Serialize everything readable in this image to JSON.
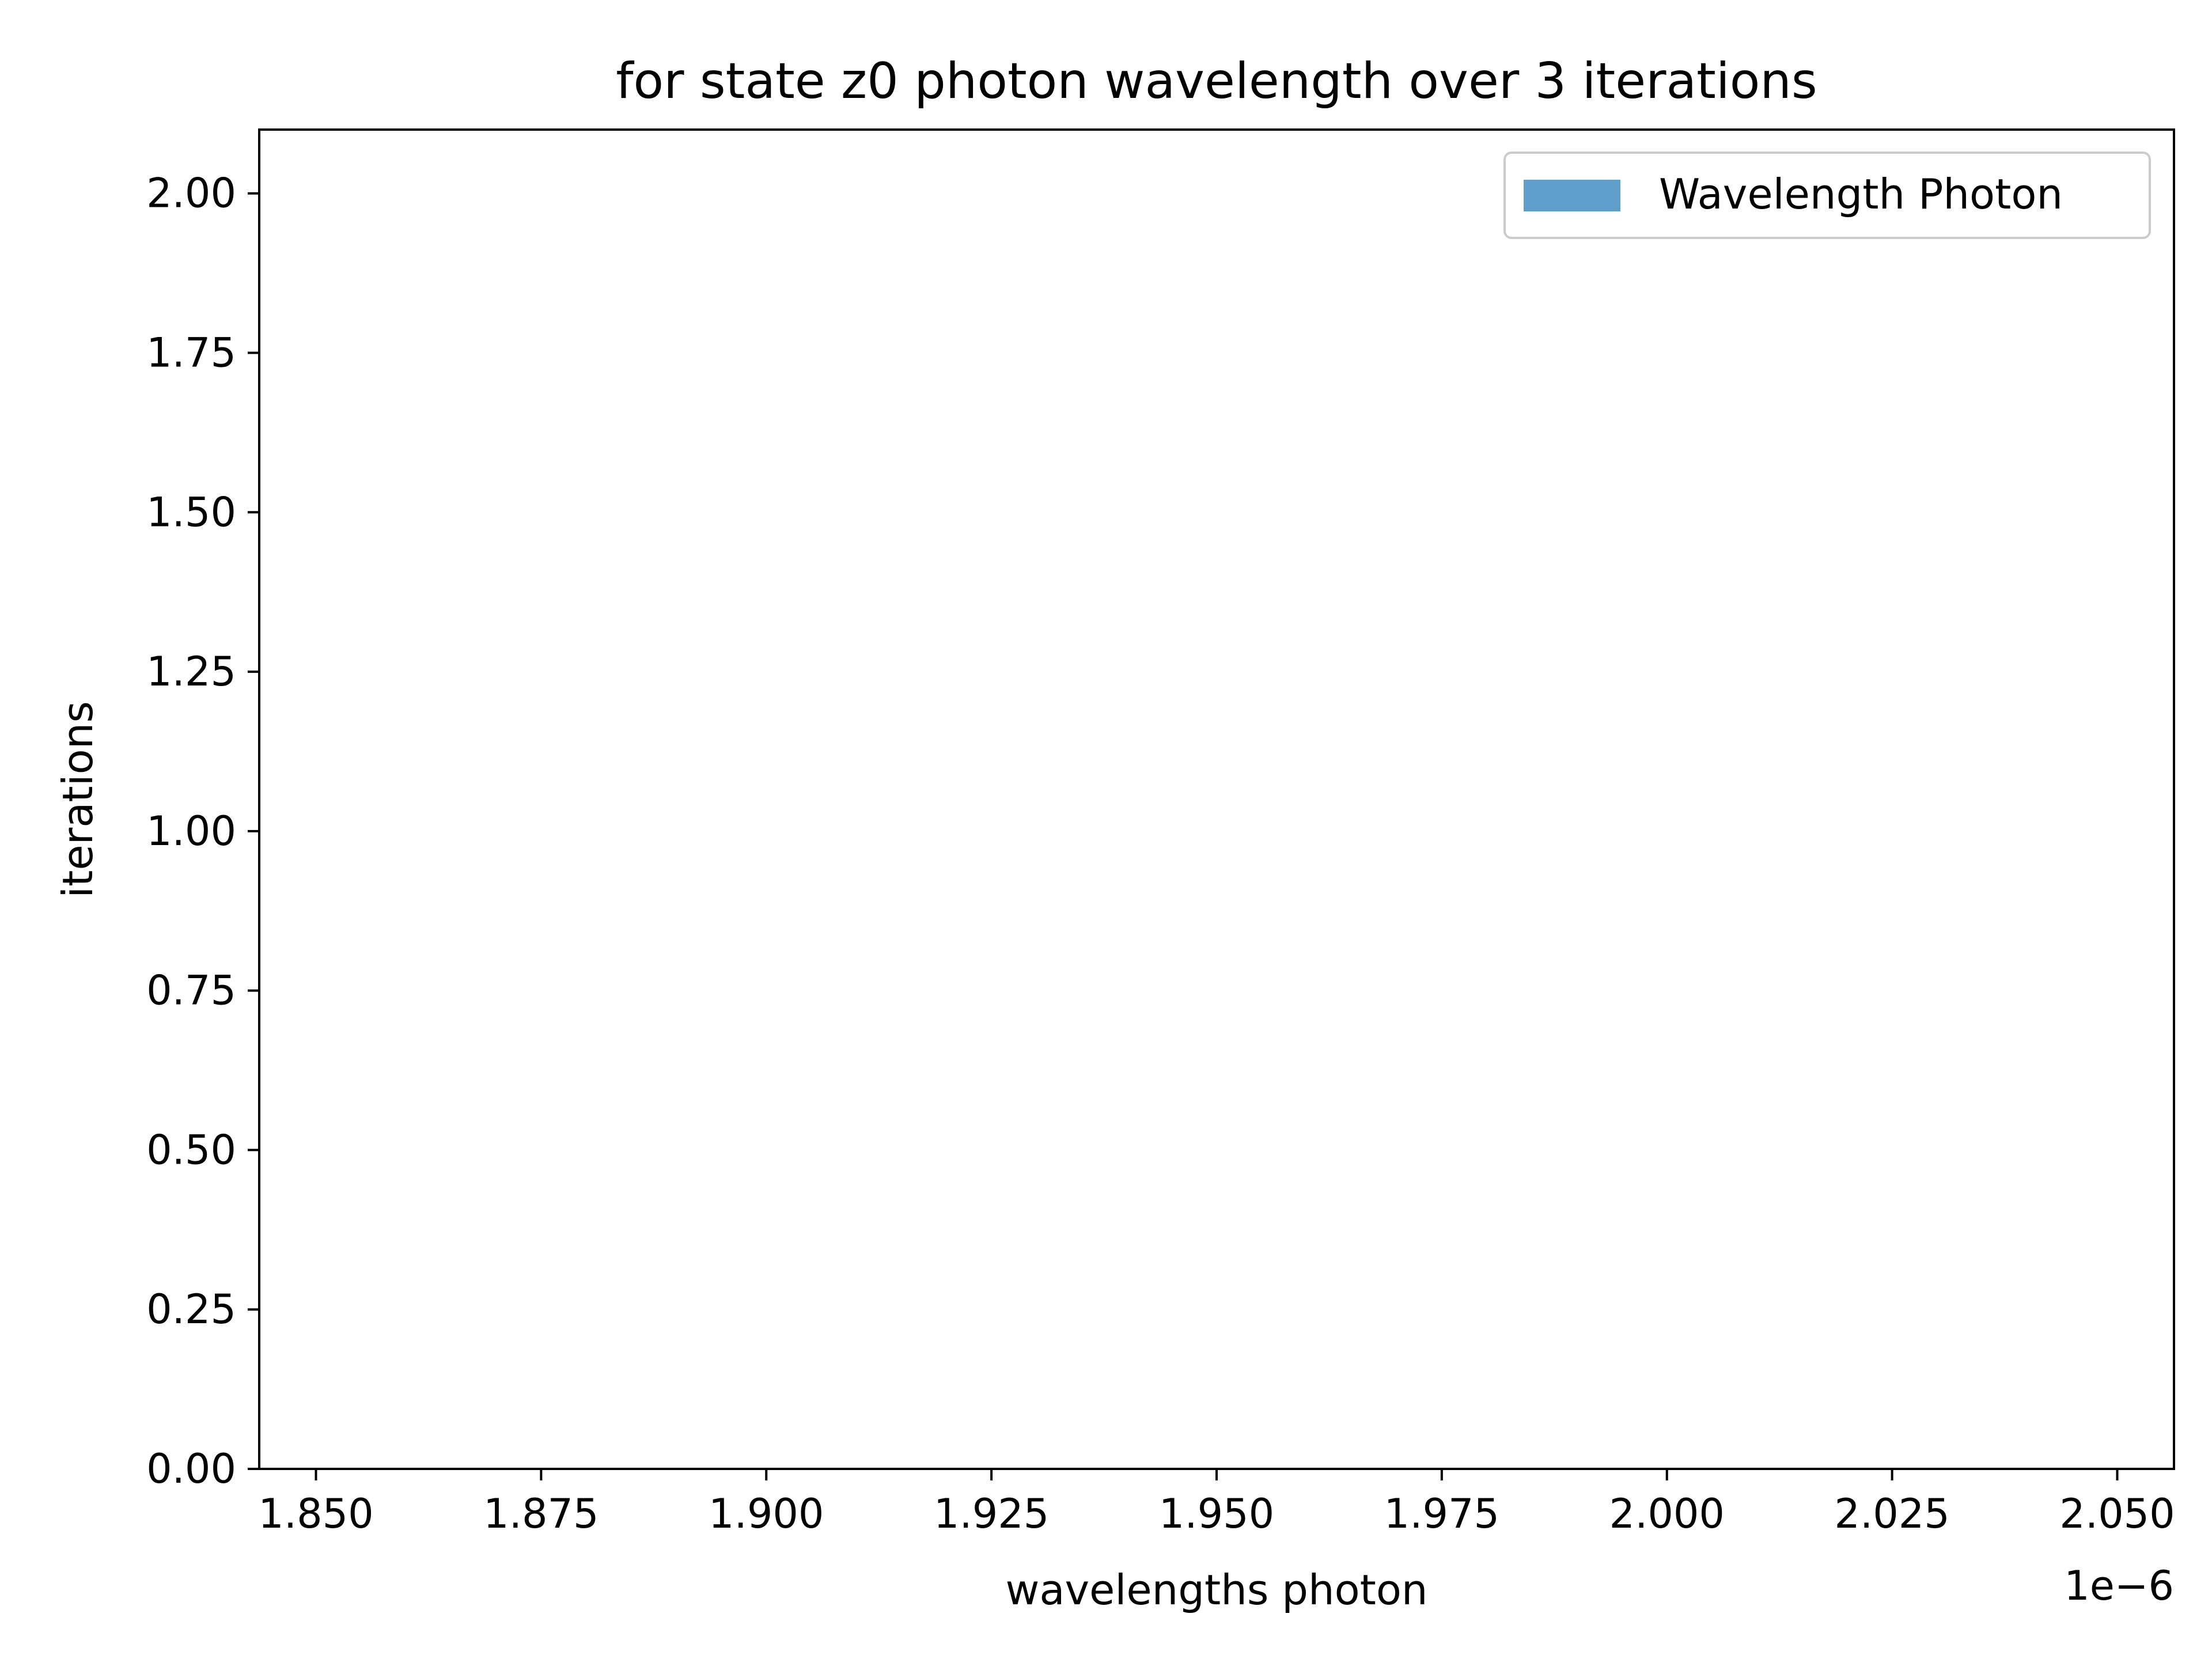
{
  "chart_data": {
    "type": "bar",
    "title": "for state z0 photon wavelength over 3 iterations",
    "xlabel": "wavelengths photon",
    "ylabel": "iterations",
    "x_offset_label": "1e−6",
    "xlim": [
      1.8437,
      2.0563
    ],
    "ylim": [
      0,
      2.1
    ],
    "x_ticks": [
      1.85,
      1.875,
      1.9,
      1.925,
      1.95,
      1.975,
      2.0,
      2.025,
      2.05
    ],
    "x_tick_labels": [
      "1.850",
      "1.875",
      "1.900",
      "1.925",
      "1.950",
      "1.975",
      "2.000",
      "2.025",
      "2.050"
    ],
    "y_ticks": [
      0,
      0.25,
      0.5,
      0.75,
      1.0,
      1.25,
      1.5,
      1.75,
      2.0
    ],
    "y_tick_labels": [
      "0.00",
      "0.25",
      "0.50",
      "0.75",
      "1.00",
      "1.25",
      "1.50",
      "1.75",
      "2.00"
    ],
    "grid": false,
    "legend_position": "top-right",
    "series": [
      {
        "name": "Wavelength Photon",
        "color": "#5f9ecb",
        "values": []
      }
    ]
  }
}
